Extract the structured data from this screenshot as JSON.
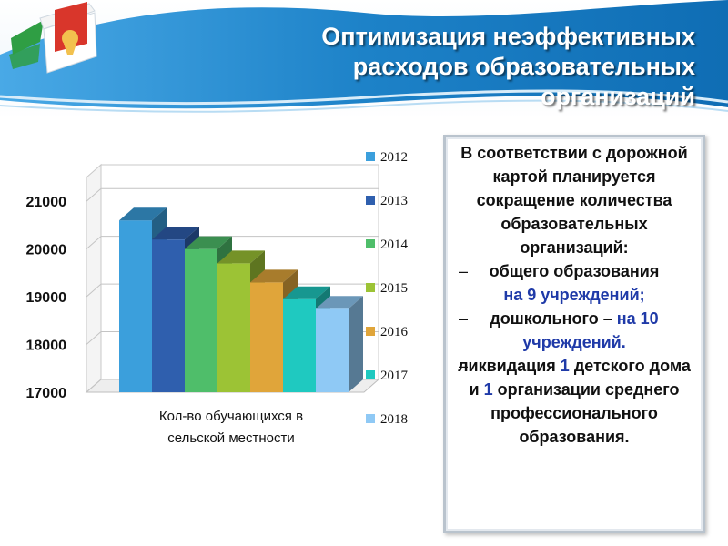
{
  "header": {
    "title_lines": [
      "Оптимизация неэффективных",
      "расходов образовательных",
      "организаций"
    ]
  },
  "colors": {
    "header_blue": "#1a7fc3",
    "accent_blue": "#1f3aa8"
  },
  "chart_data": {
    "type": "bar",
    "categories": [
      "Кол-во обучающихся в сельской местности"
    ],
    "xlabel_lines": [
      "Кол-во обучающихся в",
      "сельской местности"
    ],
    "ylim": [
      17000,
      21500
    ],
    "yticks": [
      17000,
      18000,
      19000,
      20000,
      21000
    ],
    "ytick_labels": [
      "17000",
      "18000",
      "19000",
      "20000",
      "21000"
    ],
    "grid": true,
    "legend_position": "right",
    "series": [
      {
        "name": "2012",
        "values": [
          20600
        ],
        "color": "#3b9fdc"
      },
      {
        "name": "2013",
        "values": [
          20200
        ],
        "color": "#2f5fae"
      },
      {
        "name": "2014",
        "values": [
          20000
        ],
        "color": "#4fbe6a"
      },
      {
        "name": "2015",
        "values": [
          19700
        ],
        "color": "#9cc335"
      },
      {
        "name": "2016",
        "values": [
          19300
        ],
        "color": "#e0a53a"
      },
      {
        "name": "2017",
        "values": [
          18950
        ],
        "color": "#1fc9c0"
      },
      {
        "name": "2018",
        "values": [
          18750
        ],
        "color": "#8fc9f5"
      }
    ]
  },
  "panel": {
    "intro": "В соответствии с дорожной картой планируется сокращение количества образовательных организаций:",
    "dash": "–",
    "item1_text": "общего образования",
    "item1_highlight": "на 9 учреждений;",
    "item2_text": "дошкольного –",
    "item2_highlight": "на 10 учреждений.",
    "item3_text_a": "ликвидация",
    "item3_num_a": "1",
    "item3_text_b": "детского дома и",
    "item3_num_b": "1",
    "item3_text_c": "организации среднего профессионального образования."
  }
}
